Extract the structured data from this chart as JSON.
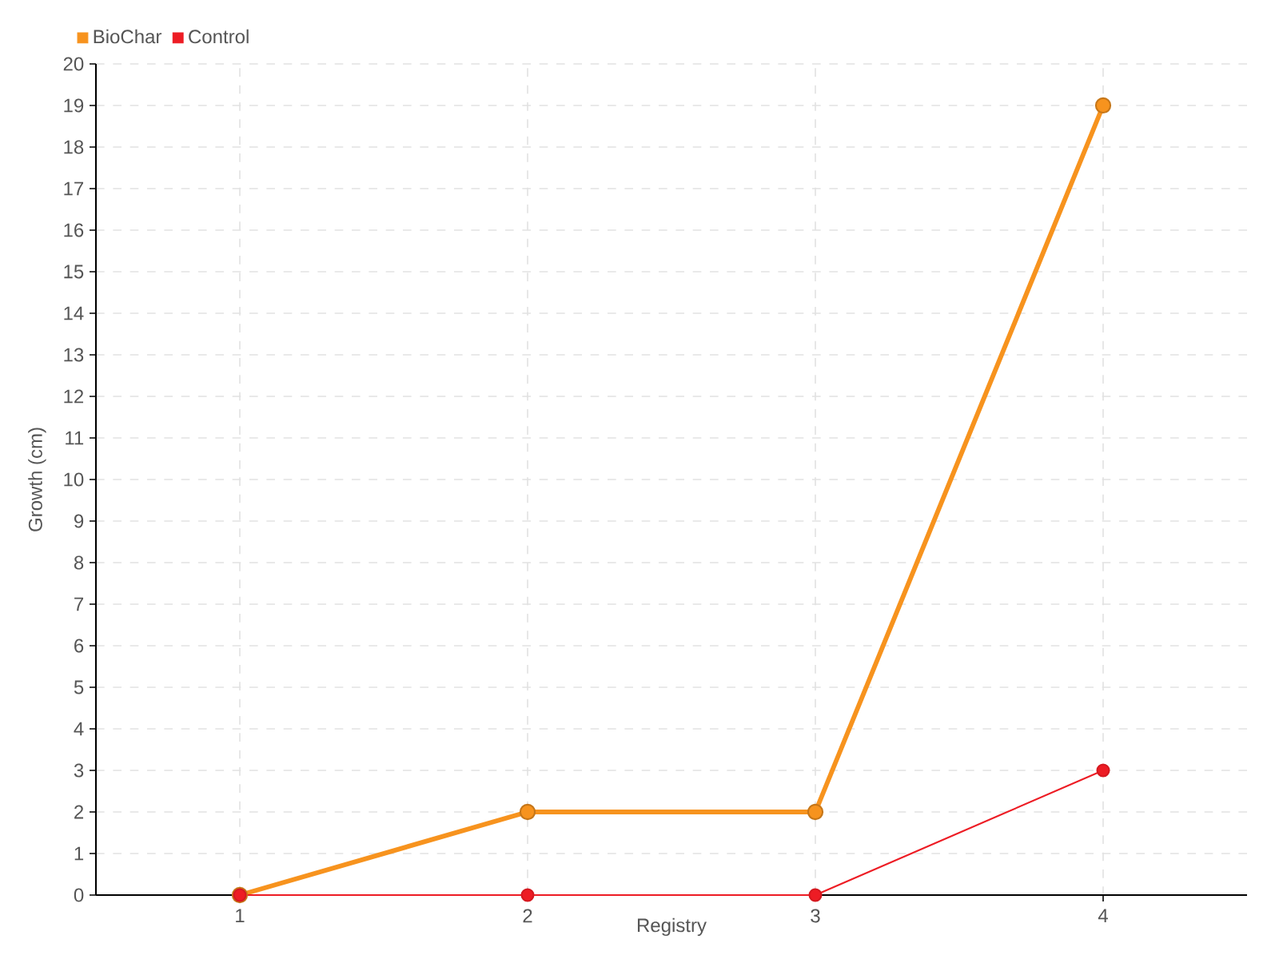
{
  "chart_data": {
    "type": "line",
    "categories": [
      "1",
      "2",
      "3",
      "4"
    ],
    "series": [
      {
        "name": "BioChar",
        "color": "#f7931e",
        "values": [
          0,
          2,
          2,
          19
        ]
      },
      {
        "name": "Control",
        "color": "#ed1c24",
        "values": [
          0,
          0,
          0,
          3
        ]
      }
    ],
    "xlabel": "Registry",
    "ylabel": "Growth (cm)",
    "ylim": [
      0,
      20
    ],
    "yticks": [
      0,
      1,
      2,
      3,
      4,
      5,
      6,
      7,
      8,
      9,
      10,
      11,
      12,
      13,
      14,
      15,
      16,
      17,
      18,
      19,
      20
    ],
    "grid": true,
    "legend": "top left",
    "marker": "circle",
    "line_style": "solid"
  }
}
